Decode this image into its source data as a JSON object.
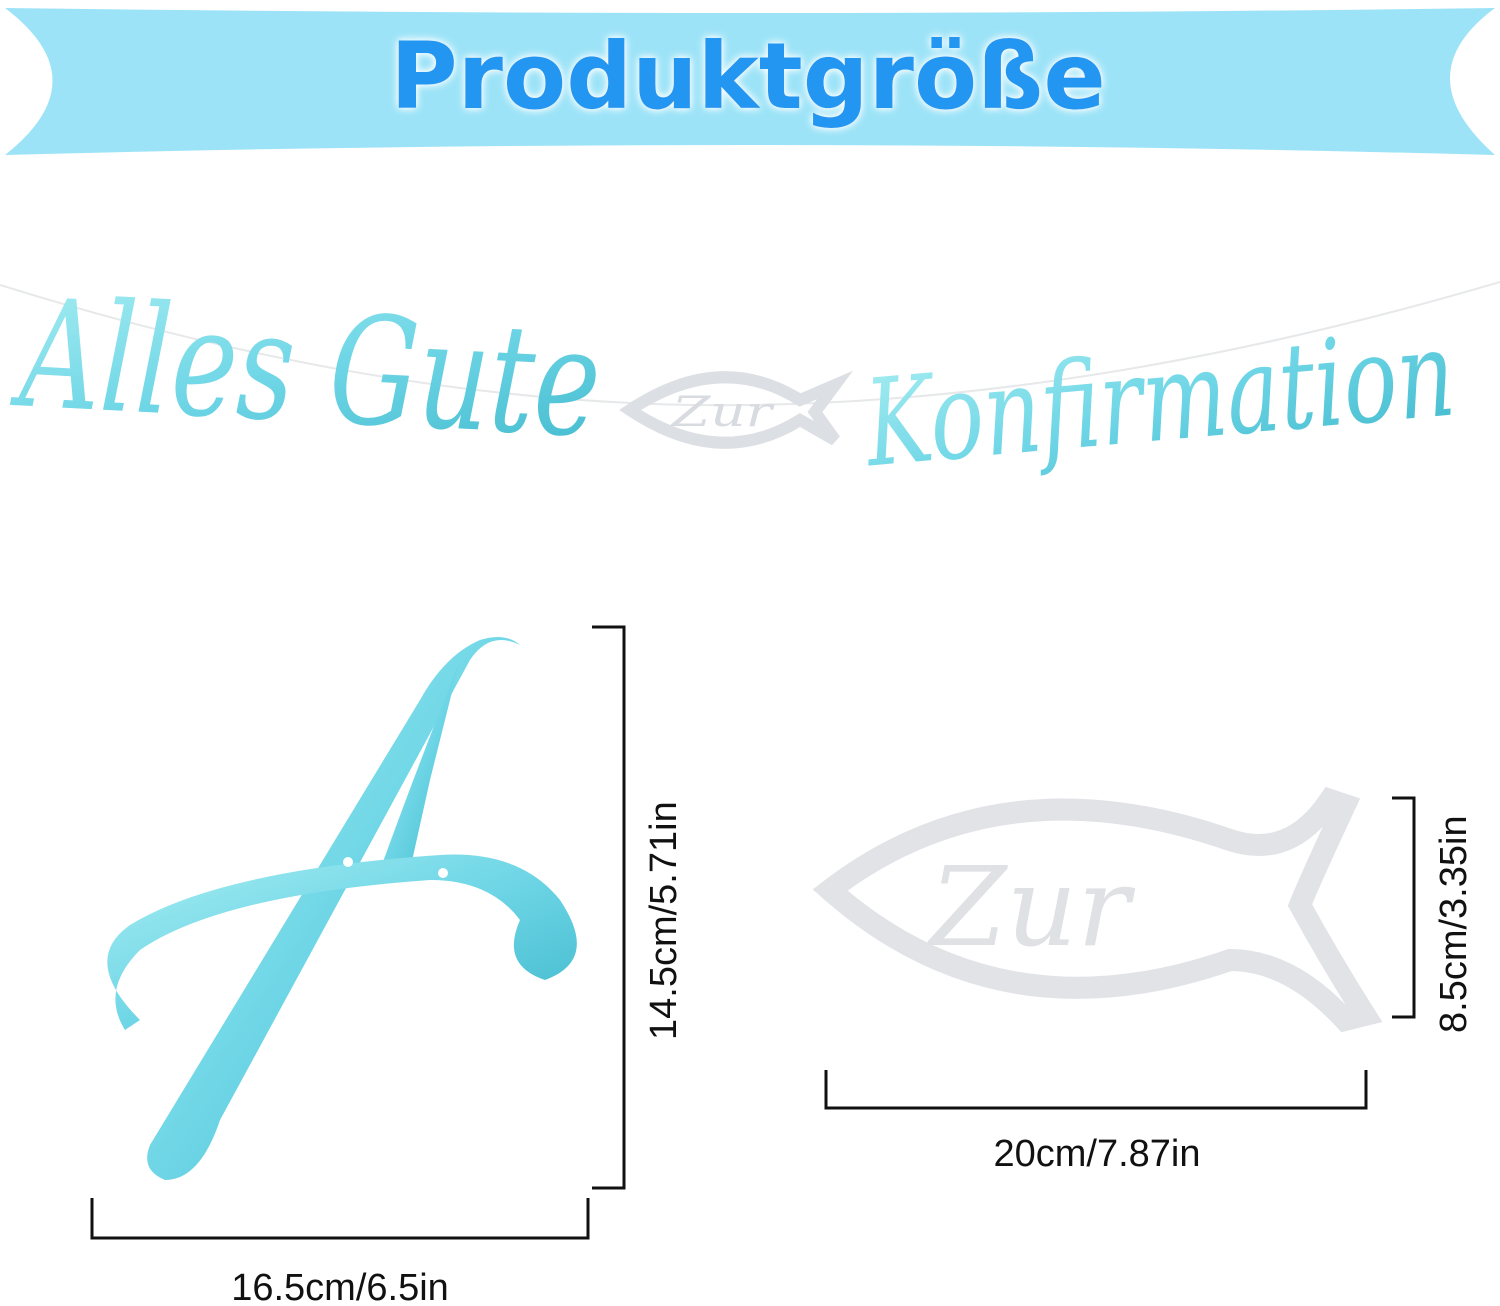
{
  "banner": {
    "title": "Produktgröße",
    "background_color": "#9de3f8",
    "text_color": "#2196f0"
  },
  "garland": {
    "words": [
      "Alles Gute",
      "Zur",
      "Konfirmation"
    ],
    "letter_color": "#6fd6e6",
    "fish_color": "#e4e6ea"
  },
  "letter_sample": {
    "glyph": "A",
    "height_label": "14.5cm/5.71in",
    "width_label": "16.5cm/6.5in"
  },
  "fish_sample": {
    "text": "Zur",
    "height_label": "8.5cm/3.35in",
    "width_label": "20cm/7.87in"
  }
}
